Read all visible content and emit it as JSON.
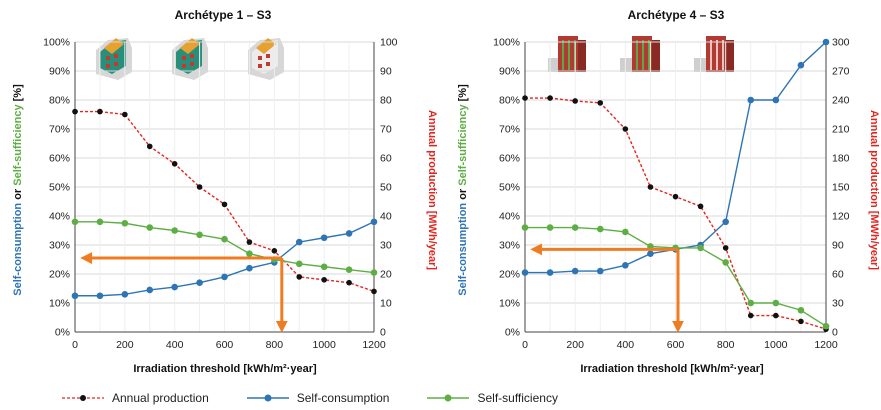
{
  "legend": {
    "annual": "Annual production",
    "selfcons": "Self-consumption",
    "selfsuff": "Self-sufficiency"
  },
  "colors": {
    "annual": "#e2261f",
    "annual_marker": "#111111",
    "selfcons": "#2f74b5",
    "selfsuff": "#5fae45",
    "arrow": "#f07c22"
  },
  "chart_data": [
    {
      "type": "line",
      "title": "Archétype 1 – S3",
      "xlabel": "Irradiation threshold [kWh/m²·year]",
      "ylabel_left_parts": [
        "Self-consumption",
        " or ",
        "Self-sufficiency",
        " [%]"
      ],
      "ylabel_right": "Annual production [MWh/year]",
      "x": [
        0,
        100,
        200,
        300,
        400,
        500,
        600,
        700,
        800,
        900,
        1000,
        1100,
        1200
      ],
      "xlim": [
        0,
        1200
      ],
      "x_ticks": [
        "0",
        "200",
        "400",
        "600",
        "800",
        "1000",
        "1200"
      ],
      "ylim_left": [
        0,
        100
      ],
      "ylim_right": [
        0,
        100
      ],
      "y_ticks_left": [
        "0%",
        "10%",
        "20%",
        "30%",
        "40%",
        "50%",
        "60%",
        "70%",
        "80%",
        "90%",
        "100%"
      ],
      "y_ticks_right": [
        "0",
        "10",
        "20",
        "30",
        "40",
        "50",
        "60",
        "70",
        "80",
        "90",
        "100"
      ],
      "series": [
        {
          "name": "Annual production",
          "axis": "right",
          "values": [
            76,
            76,
            75,
            64,
            58,
            50,
            44,
            31,
            28,
            19,
            18,
            17,
            14
          ]
        },
        {
          "name": "Self-consumption",
          "axis": "left",
          "values": [
            12.5,
            12.5,
            13,
            14.5,
            15.5,
            17,
            19,
            22,
            24,
            31,
            32.5,
            34,
            38
          ]
        },
        {
          "name": "Self-sufficiency",
          "axis": "left",
          "values": [
            38,
            38,
            37.5,
            36,
            35,
            33.5,
            32,
            27,
            25,
            23.5,
            22.5,
            21.5,
            20.5
          ]
        }
      ],
      "annotation": {
        "type": "arrows",
        "crossing_x": 830,
        "level_left_pct": 25.5
      }
    },
    {
      "type": "line",
      "title": "Archétype 4 – S3",
      "xlabel": "Irradiation threshold [kWh/m²·year]",
      "ylabel_left_parts": [
        "Self-consumption",
        " or ",
        "Self-sufficiency",
        " [%]"
      ],
      "ylabel_right": "Annual production [MWh/year]",
      "x": [
        0,
        100,
        200,
        300,
        400,
        500,
        600,
        700,
        800,
        900,
        1000,
        1100,
        1200
      ],
      "xlim": [
        0,
        1200
      ],
      "x_ticks": [
        "0",
        "200",
        "400",
        "600",
        "800",
        "1000",
        "1200"
      ],
      "ylim_left": [
        0,
        100
      ],
      "ylim_right": [
        0,
        300
      ],
      "y_ticks_left": [
        "0%",
        "10%",
        "20%",
        "30%",
        "40%",
        "50%",
        "60%",
        "70%",
        "80%",
        "90%",
        "100%"
      ],
      "y_ticks_right": [
        "0",
        "30",
        "60",
        "90",
        "120",
        "150",
        "180",
        "210",
        "240",
        "270",
        "300"
      ],
      "series": [
        {
          "name": "Annual production",
          "axis": "right",
          "values": [
            242,
            242,
            239,
            237,
            210,
            150,
            140,
            130,
            87,
            17,
            17,
            11,
            3
          ]
        },
        {
          "name": "Self-consumption",
          "axis": "left",
          "values": [
            20.5,
            20.5,
            21,
            21,
            23,
            27,
            28.5,
            30,
            38,
            80,
            80,
            92,
            100
          ]
        },
        {
          "name": "Self-sufficiency",
          "axis": "left",
          "values": [
            36,
            36,
            36,
            35.5,
            34.5,
            29.5,
            29,
            29,
            24,
            10,
            10,
            7.5,
            2
          ]
        }
      ],
      "annotation": {
        "type": "arrows",
        "crossing_x": 610,
        "level_left_pct": 28.5
      }
    }
  ]
}
